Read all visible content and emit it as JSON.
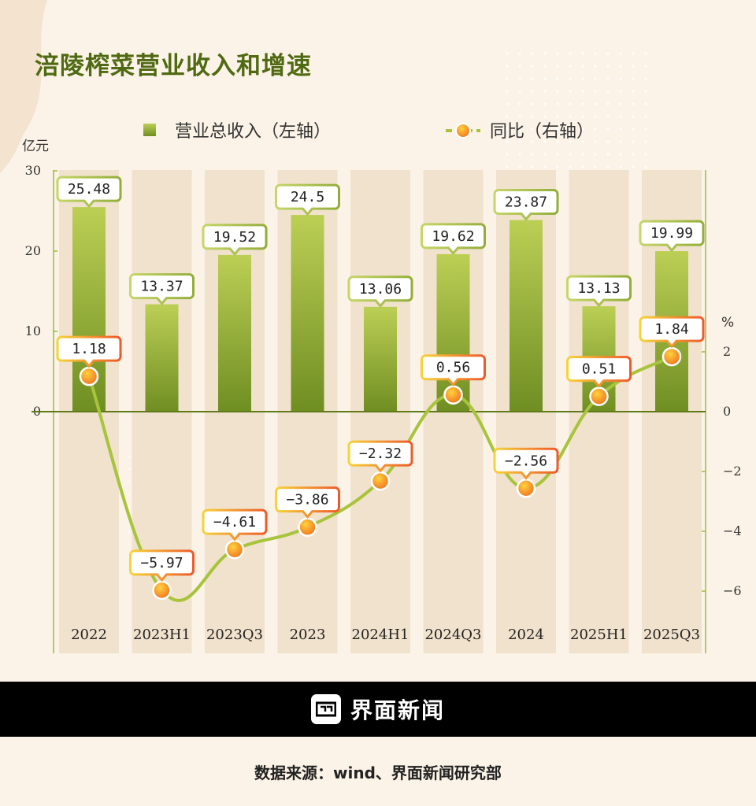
{
  "chart_data": {
    "type": "bar",
    "title": "涪陵榨菜营业收入和增速",
    "categories": [
      "2022",
      "2023H1",
      "2023Q3",
      "2023",
      "2024H1",
      "2024Q3",
      "2024",
      "2025H1",
      "2025Q3"
    ],
    "series": [
      {
        "name": "营业总收入（左轴）",
        "type": "bar",
        "axis": "left",
        "values": [
          25.48,
          13.37,
          19.52,
          24.5,
          13.06,
          19.62,
          23.87,
          13.13,
          19.99
        ]
      },
      {
        "name": "同比（右轴）",
        "type": "line",
        "axis": "right",
        "values": [
          1.18,
          -5.97,
          -4.61,
          -3.86,
          -2.32,
          0.56,
          -2.56,
          0.51,
          1.84
        ]
      }
    ],
    "value_labels": {
      "bar": [
        "25.48",
        "13.37",
        "19.52",
        "24.5",
        "13.06",
        "19.62",
        "23.87",
        "13.13",
        "19.99"
      ],
      "line": [
        "1.18",
        "−5.97",
        "−4.61",
        "−3.86",
        "−2.32",
        "0.56",
        "−2.56",
        "0.51",
        "1.84"
      ]
    },
    "left_axis": {
      "unit": "亿元",
      "ticks": [
        0,
        10,
        20,
        30
      ],
      "tick_labels": [
        "0",
        "10",
        "20",
        "30"
      ]
    },
    "right_axis": {
      "unit": "%",
      "ticks": [
        2,
        0,
        -2,
        -4,
        -6
      ],
      "tick_labels": [
        "2",
        "0",
        "−2",
        "−4",
        "−6"
      ]
    },
    "legend_position": "top",
    "grid": false,
    "colors": {
      "bar_top": "#bccf55",
      "bar_bottom": "#6f8e22",
      "line": "#a7c43c",
      "marker_fill": "#f39a1b",
      "marker_stroke": "#ffffff",
      "label_border_bar": "#a8bf4a",
      "label_border_line": "#f07a24",
      "stripe": "#f1e2cd",
      "axis": "#9cbb3a",
      "title": "#4f6a12"
    }
  },
  "footer": {
    "brand": "界面新闻",
    "source": "数据来源：wind、界面新闻研究部"
  },
  "icons": {
    "brand_logo": "jiemian-logo-icon"
  }
}
